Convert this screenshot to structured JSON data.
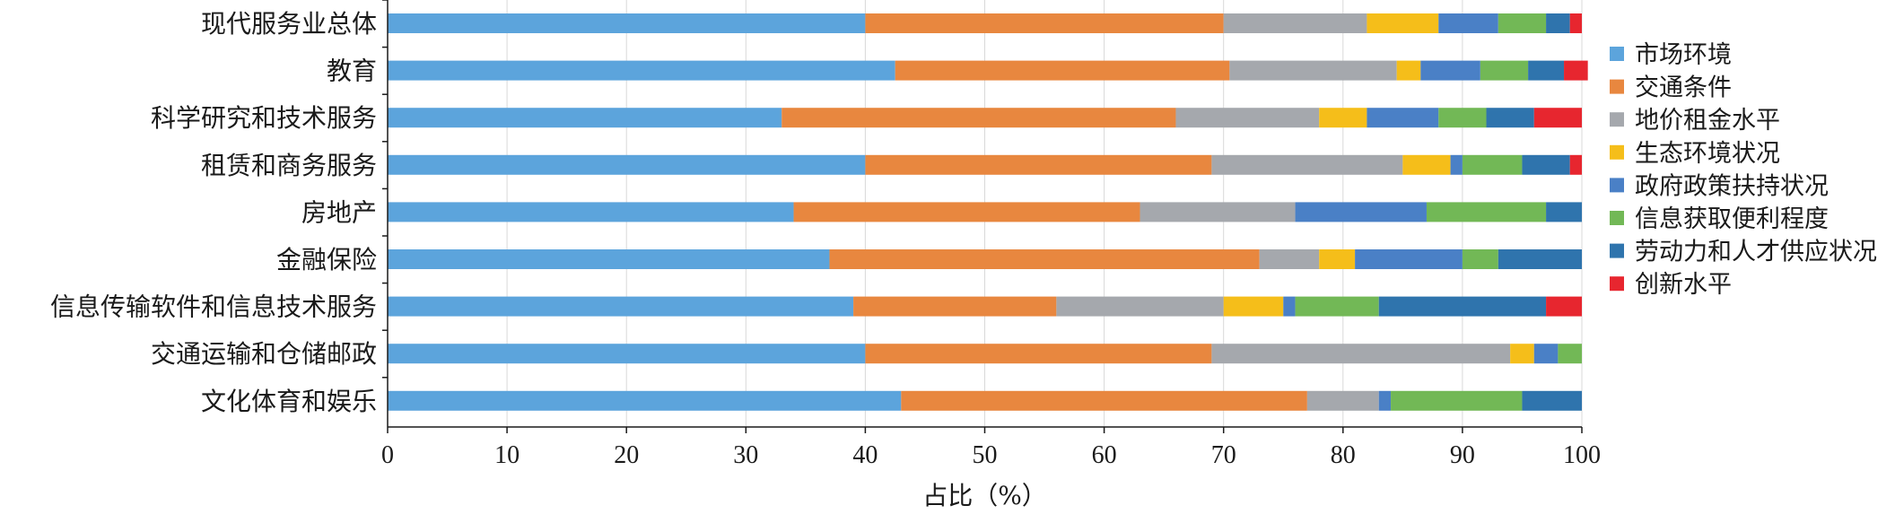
{
  "chart_data": {
    "type": "bar",
    "orientation": "horizontal",
    "stacked": true,
    "title": "",
    "xlabel": "占比（%）",
    "ylabel": "",
    "xlim": [
      0,
      100
    ],
    "xticks": [
      0,
      10,
      20,
      30,
      40,
      50,
      60,
      70,
      80,
      90,
      100
    ],
    "grid": "vertical",
    "legend_position": "right",
    "categories": [
      "现代服务业总体",
      "教育",
      "科学研究和技术服务",
      "租赁和商务服务",
      "房地产",
      "金融保险",
      "信息传输软件和信息技术服务",
      "交通运输和仓储邮政",
      "文化体育和娱乐"
    ],
    "series": [
      {
        "name": "市场环境",
        "color": "#5ca4dc",
        "values": [
          40,
          42.5,
          33,
          40,
          34,
          37,
          39,
          40,
          43
        ]
      },
      {
        "name": "交通条件",
        "color": "#e8873f",
        "values": [
          30,
          28,
          33,
          29,
          29,
          36,
          17,
          29,
          34
        ]
      },
      {
        "name": "地价租金水平",
        "color": "#a5a8ad",
        "values": [
          12,
          14,
          12,
          16,
          13,
          5,
          14,
          25,
          6
        ]
      },
      {
        "name": "生态环境状况",
        "color": "#f5be1a",
        "values": [
          6,
          2,
          4,
          4,
          0,
          3,
          5,
          2,
          0
        ]
      },
      {
        "name": "政府政策扶持状况",
        "color": "#4a80c6",
        "values": [
          5,
          5,
          6,
          1,
          11,
          9,
          1,
          2,
          1
        ]
      },
      {
        "name": "信息获取便利程度",
        "color": "#72b856",
        "values": [
          4,
          4,
          4,
          5,
          10,
          3,
          7,
          2,
          11
        ]
      },
      {
        "name": "劳动力和人才供应状况",
        "color": "#2f74ad",
        "values": [
          2,
          3,
          4,
          4,
          3,
          7,
          14,
          0,
          5
        ]
      },
      {
        "name": "创新水平",
        "color": "#e7262f",
        "values": [
          1,
          2,
          4,
          1,
          0,
          0,
          3,
          0,
          0
        ]
      }
    ]
  }
}
